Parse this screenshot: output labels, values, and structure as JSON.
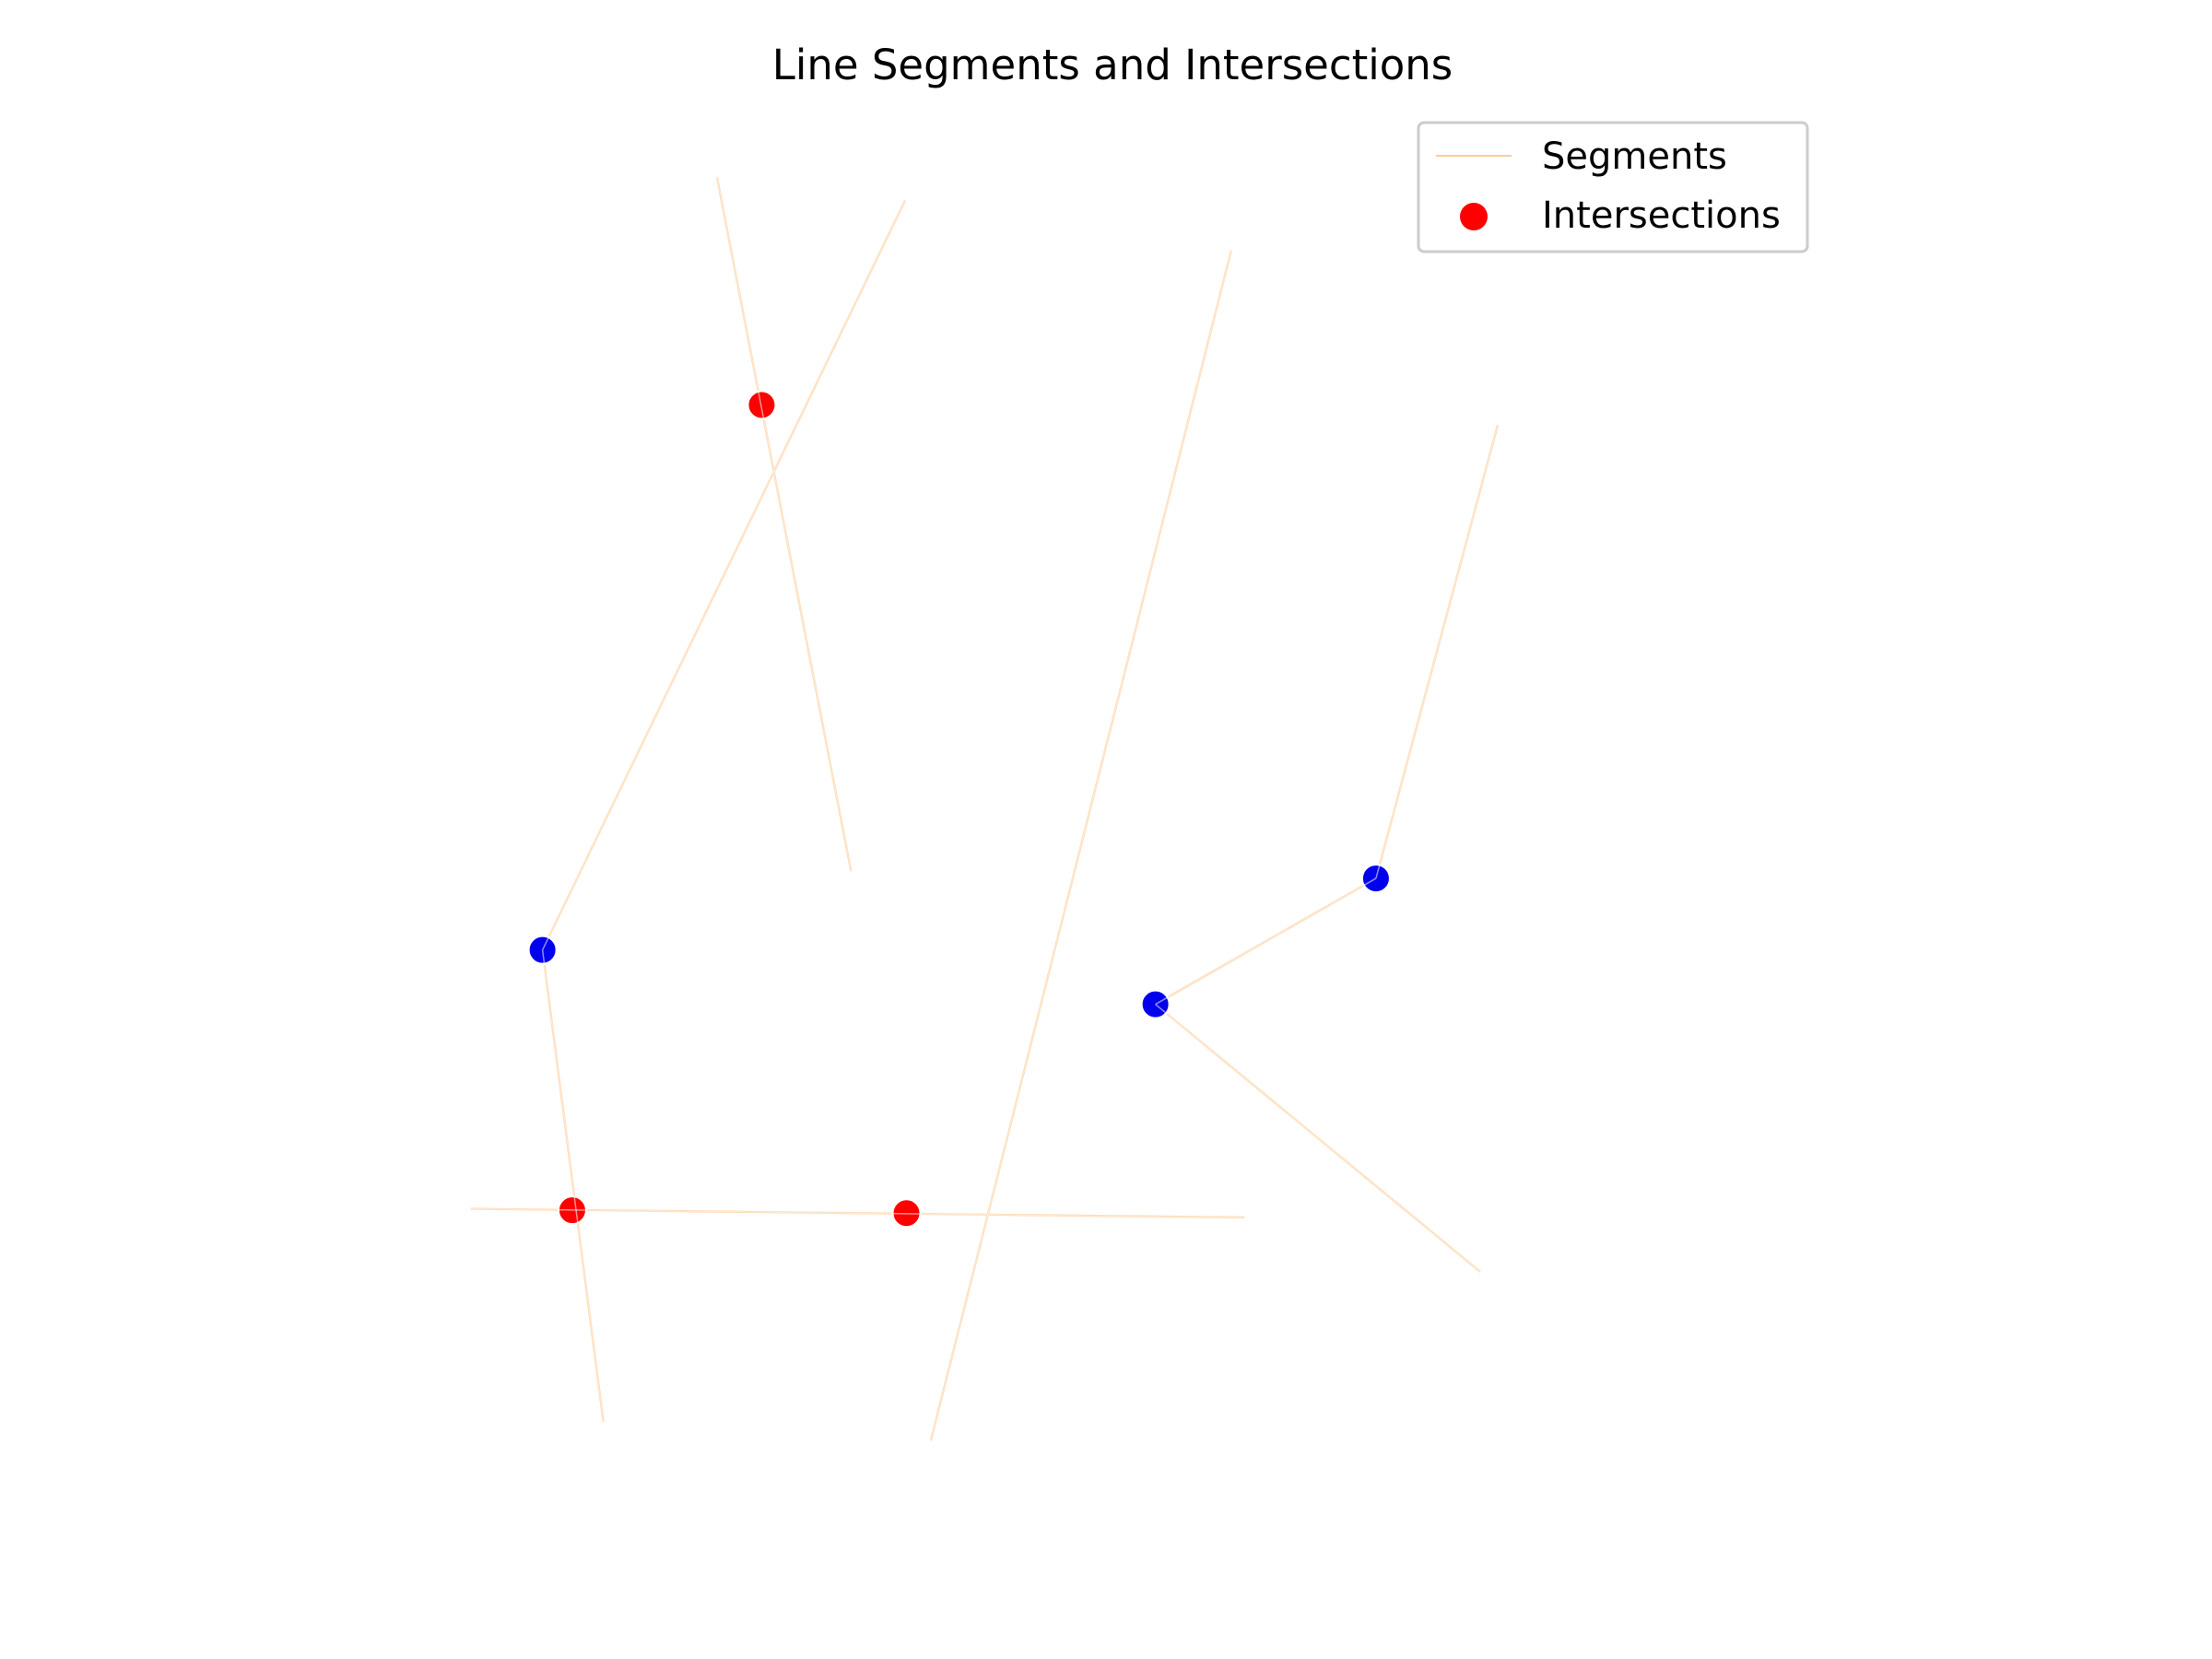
{
  "chart_data": {
    "type": "scatter",
    "title": "Line Segments and Intersections",
    "axes_visible": false,
    "xlim": [
      0,
      1000
    ],
    "ylim": [
      0,
      1000
    ],
    "legend": {
      "placement": "top-right",
      "entries": [
        {
          "label": "Segments",
          "kind": "line",
          "color": "#ffcc99"
        },
        {
          "label": "Intersections",
          "kind": "point",
          "color": "#ff0000"
        }
      ]
    },
    "segment_color": "#ffcc99",
    "segments": [
      {
        "x1": 203,
        "y1": 979,
        "x2": 302,
        "y2": 494
      },
      {
        "x1": 342,
        "y1": 963,
        "x2": 74,
        "y2": 439
      },
      {
        "x1": 583,
        "y1": 928,
        "x2": 361,
        "y2": 96
      },
      {
        "x1": 780,
        "y1": 806,
        "x2": 690,
        "y2": 489
      },
      {
        "x1": 690,
        "y1": 489,
        "x2": 527,
        "y2": 401
      },
      {
        "x1": 527,
        "y1": 401,
        "x2": 767,
        "y2": 214
      },
      {
        "x1": 21,
        "y1": 258,
        "x2": 593,
        "y2": 252
      },
      {
        "x1": 74,
        "y1": 439,
        "x2": 119,
        "y2": 109
      }
    ],
    "intersections": {
      "name": "Intersections",
      "color": "#ff0000",
      "points": [
        {
          "x": 236,
          "y": 820
        },
        {
          "x": 96,
          "y": 257
        },
        {
          "x": 343,
          "y": 255
        }
      ]
    },
    "endpoints": {
      "color": "#0000ee",
      "points": [
        {
          "x": 690,
          "y": 489
        },
        {
          "x": 527,
          "y": 401
        },
        {
          "x": 74,
          "y": 439
        }
      ]
    }
  }
}
